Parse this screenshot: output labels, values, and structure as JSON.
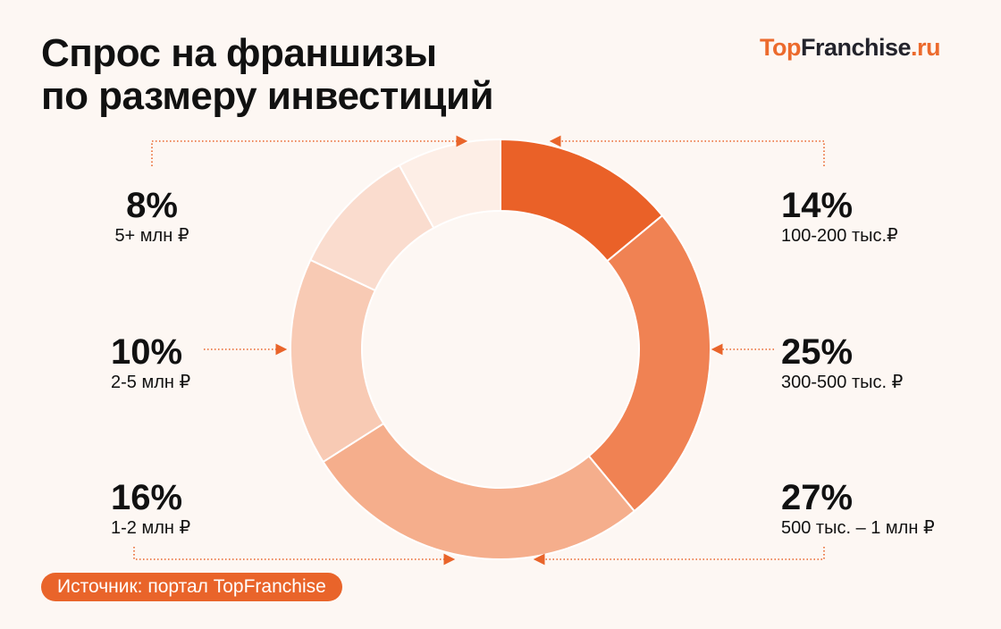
{
  "title_line1": "Спрос на франшизы",
  "title_line2": "по размеру инвестиций",
  "logo": {
    "part1": "Top",
    "part2": "Franchise",
    "part3": ".ru"
  },
  "source": "Источник: портал TopFranchise",
  "chart_data": {
    "type": "pie",
    "variant": "donut",
    "categories": [
      "100-200 тыс.₽",
      "300-500 тыс. ₽",
      "500 тыс. – 1 млн ₽",
      "1-2 млн ₽",
      "2-5 млн ₽",
      "5+ млн ₽"
    ],
    "values": [
      14,
      25,
      27,
      16,
      10,
      8
    ],
    "labels": [
      "14%",
      "25%",
      "27%",
      "16%",
      "10%",
      "8%"
    ],
    "colors": [
      "#EA6128",
      "#F08253",
      "#F5AE8C",
      "#F8CAB4",
      "#FADCCE",
      "#FDEEE6"
    ],
    "start": "top",
    "direction": "clockwise"
  }
}
